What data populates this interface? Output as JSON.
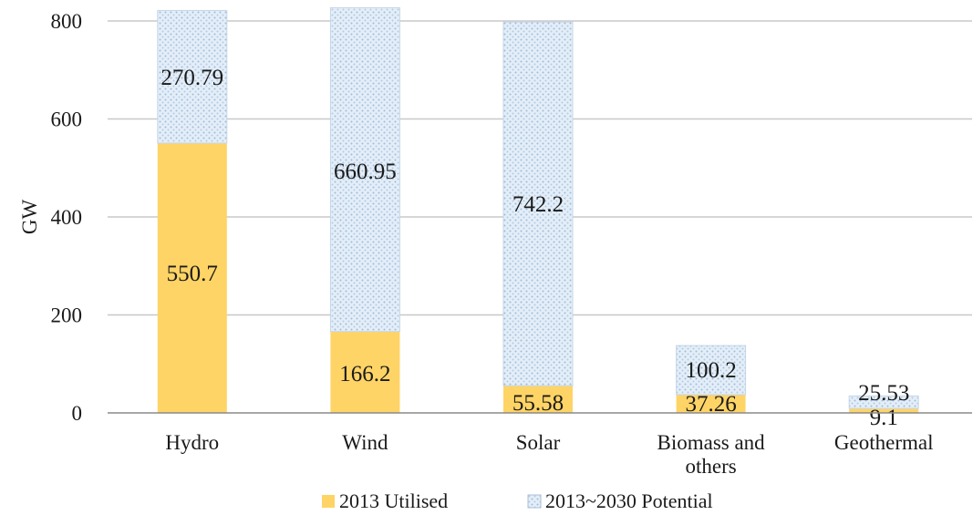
{
  "chart_data": {
    "type": "bar",
    "stacked": true,
    "categories": [
      "Hydro",
      "Wind",
      "Solar",
      "Biomass and others",
      "Geothermal"
    ],
    "category_lines": [
      [
        "Hydro"
      ],
      [
        "Wind"
      ],
      [
        "Solar"
      ],
      [
        "Biomass and",
        "others"
      ],
      [
        "Geothermal"
      ]
    ],
    "series": [
      {
        "name": "2013 Utilised",
        "values": [
          550.7,
          166.2,
          55.58,
          37.26,
          9.1
        ],
        "labels": [
          "550.7",
          "166.2",
          "55.58",
          "37.26",
          "9.1"
        ],
        "color": "#FFD466",
        "pattern": "solid"
      },
      {
        "name": "2013~2030 Potential",
        "values": [
          270.79,
          660.95,
          742.2,
          100.2,
          25.53
        ],
        "labels": [
          "270.79",
          "660.95",
          "742.2",
          "100.2",
          "25.53"
        ],
        "color": "#DCE9F5",
        "pattern": "dotted"
      }
    ],
    "title": "",
    "xlabel": "",
    "ylabel": "GW",
    "ylim": [
      0,
      800
    ],
    "yticks": [
      0,
      200,
      400,
      600,
      800
    ],
    "grid": true,
    "legend_position": "bottom"
  }
}
